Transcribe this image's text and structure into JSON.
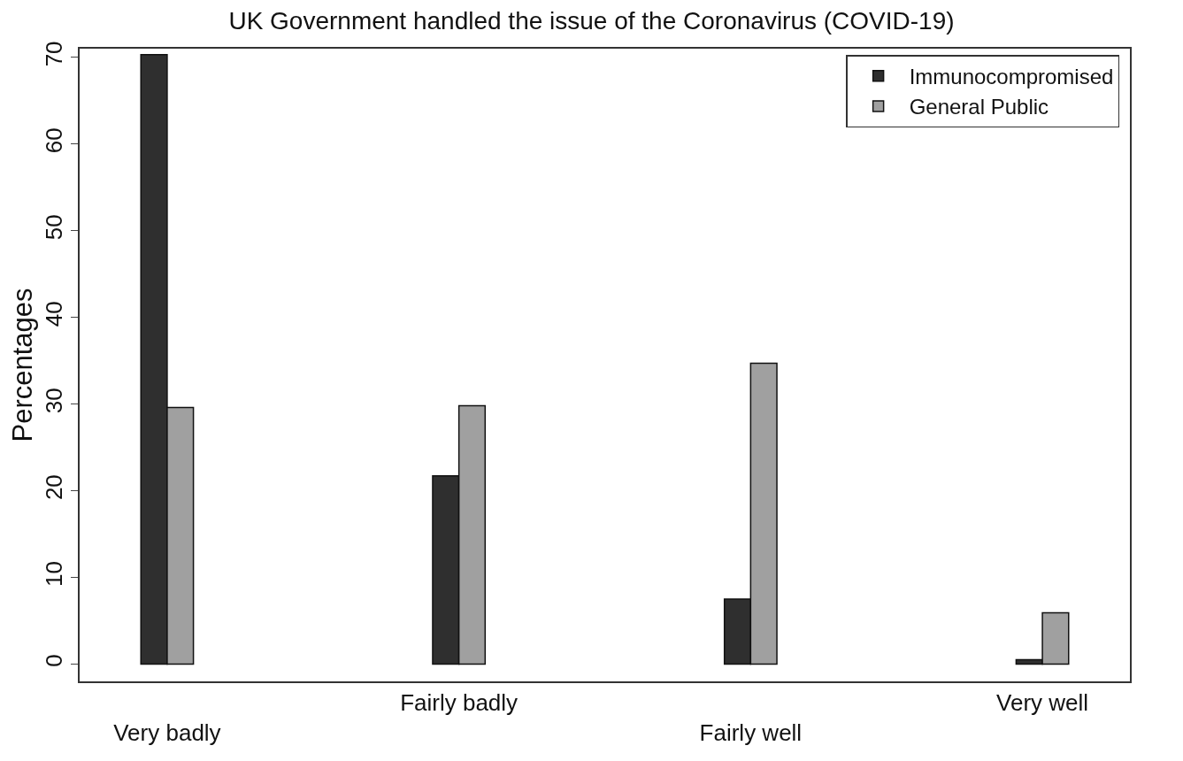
{
  "chart_data": {
    "type": "bar",
    "title": "UK Government handled the issue of the Coronavirus (COVID-19)",
    "ylabel": "Percentages",
    "categories": [
      "Very badly",
      "Fairly badly",
      "Fairly well",
      "Very well"
    ],
    "series": [
      {
        "name": "Immunocompromised",
        "color": "#2f2f2f",
        "values": [
          70.3,
          21.7,
          7.5,
          0.5
        ]
      },
      {
        "name": "General Public",
        "color": "#a0a0a0",
        "values": [
          29.6,
          29.8,
          34.7,
          5.9
        ]
      }
    ],
    "ylim": [
      -2,
      71
    ],
    "yticks": [
      0,
      10,
      20,
      30,
      40,
      50,
      60,
      70
    ],
    "legend": "top right"
  }
}
